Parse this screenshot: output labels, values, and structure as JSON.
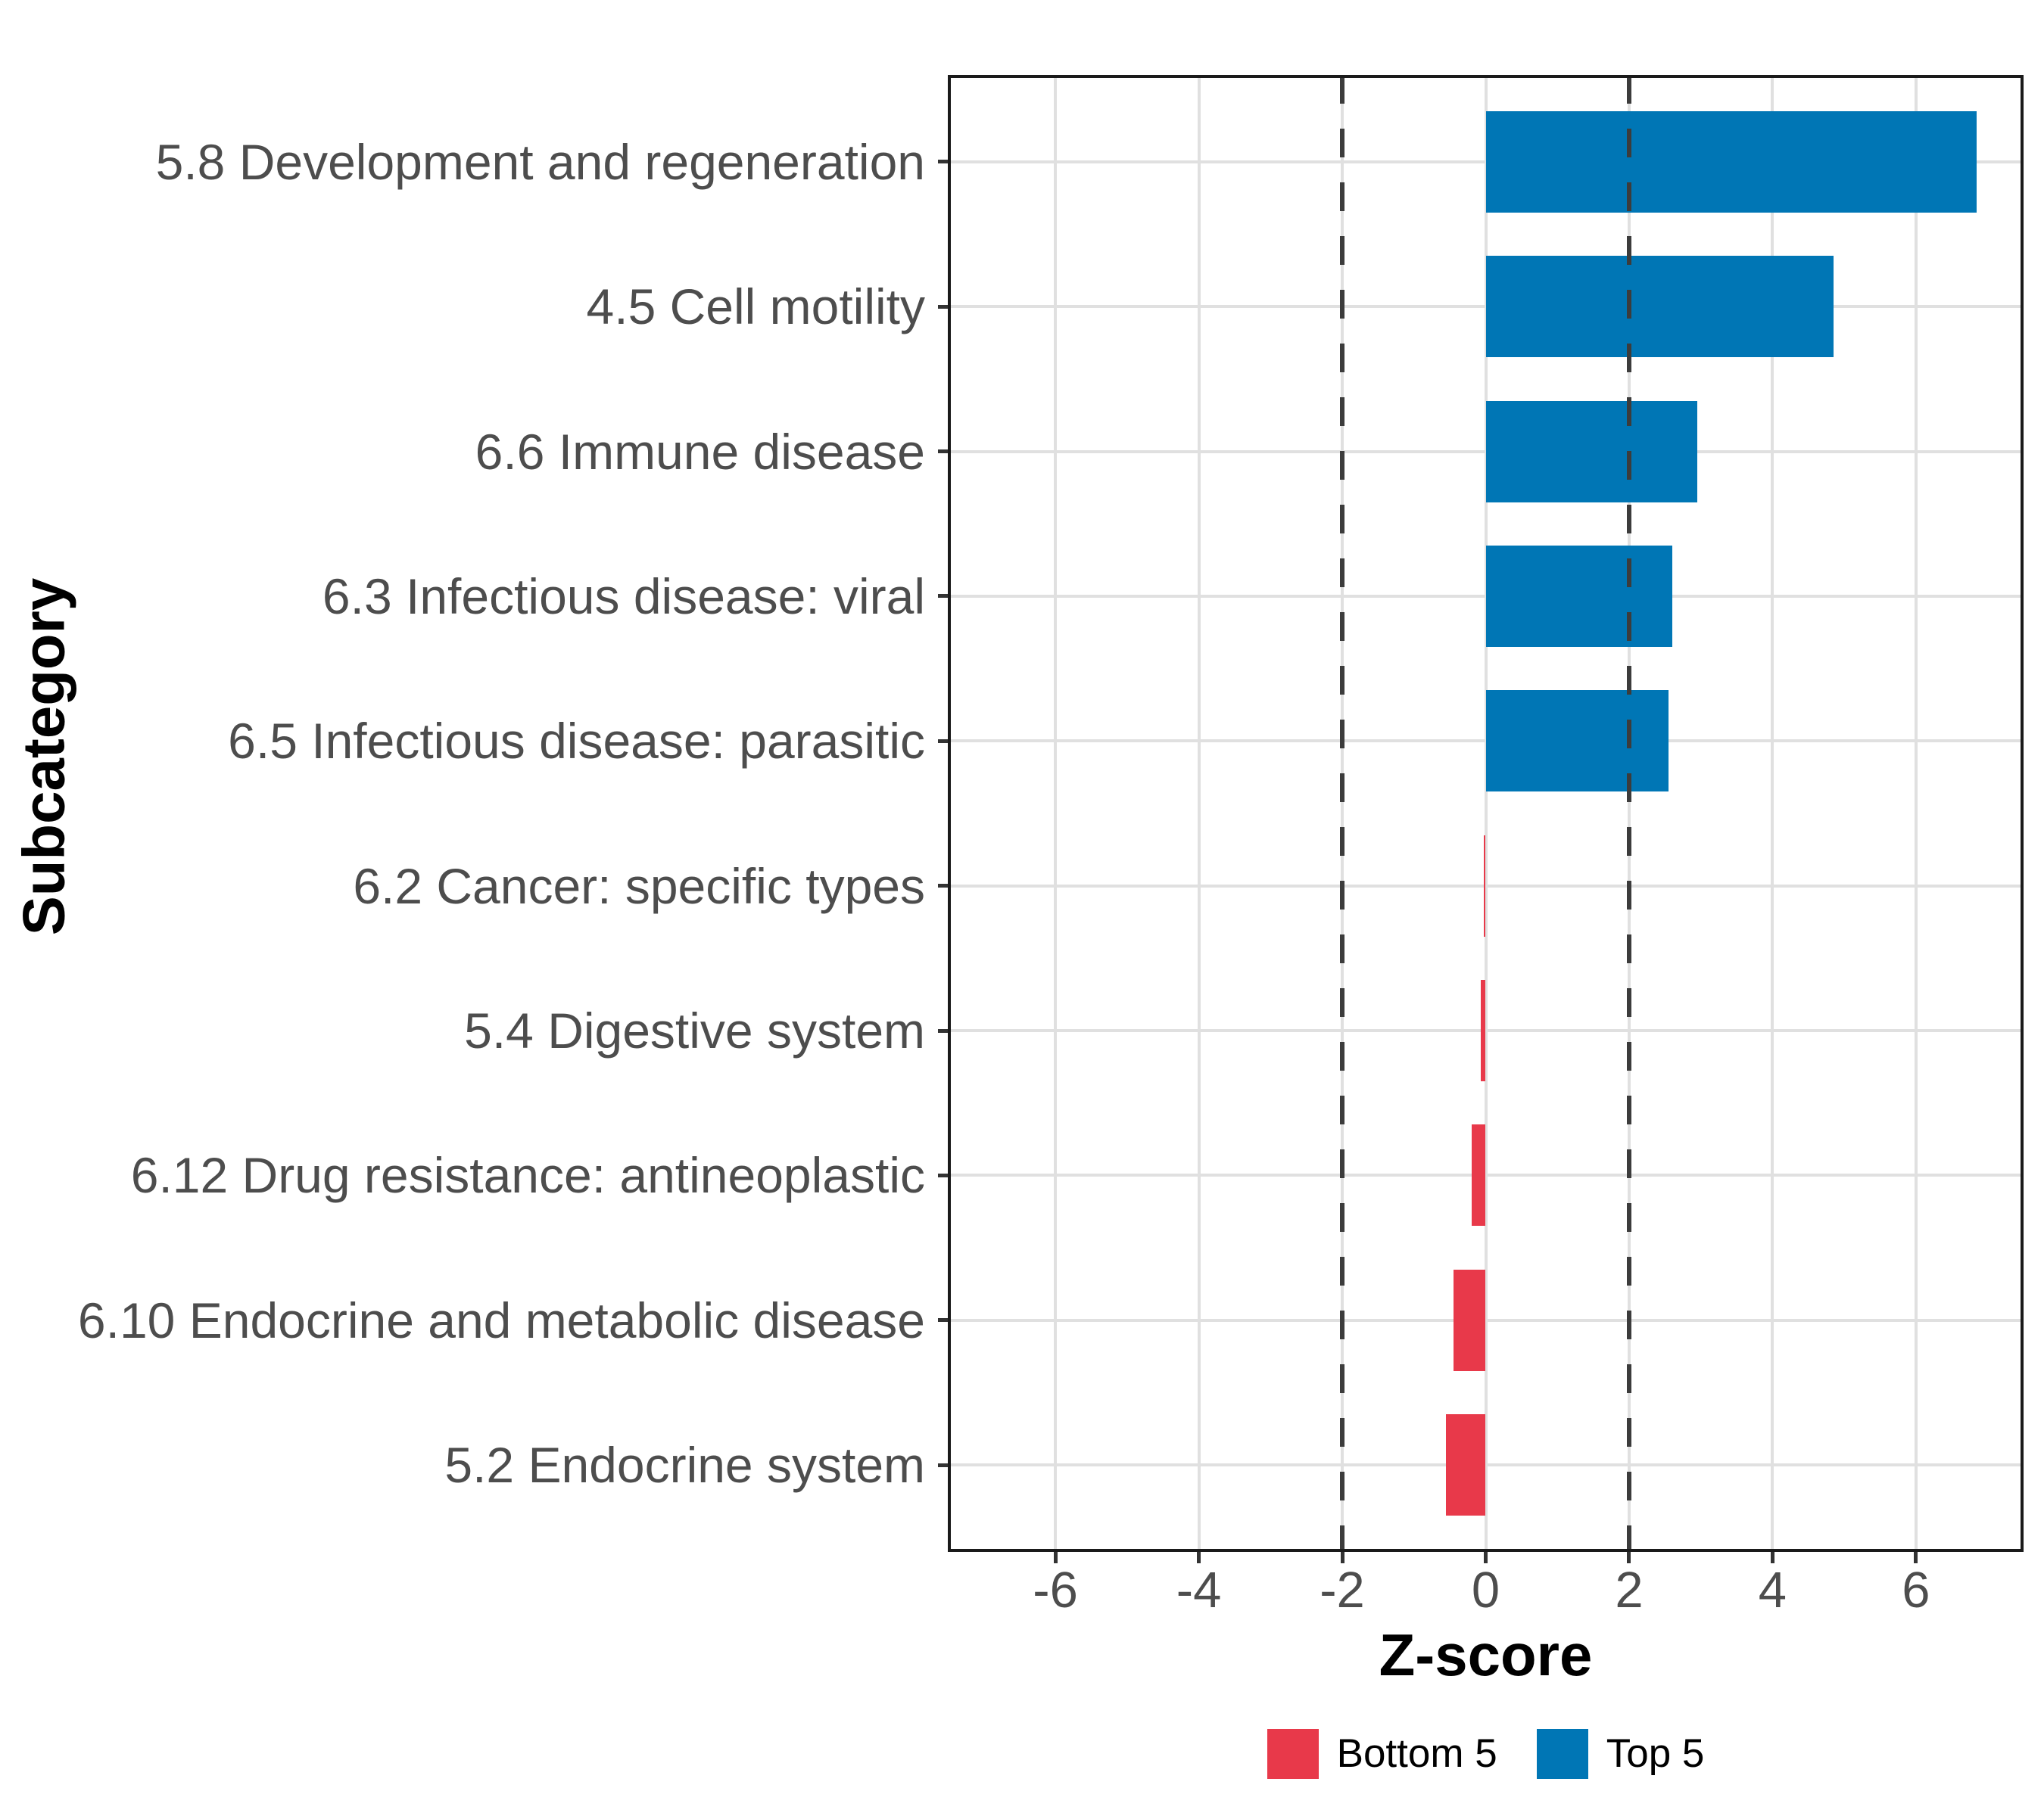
{
  "chart_data": {
    "type": "bar",
    "orientation": "horizontal",
    "title": "",
    "xlabel": "Z-score",
    "ylabel": "Subcategory",
    "xlim": [
      -7.5,
      7.5
    ],
    "x_ticks": [
      -6,
      -4,
      -2,
      0,
      2,
      4,
      6
    ],
    "x_tick_labels": [
      "-6",
      "-4",
      "-2",
      "0",
      "2",
      "4",
      "6"
    ],
    "reference_lines": [
      -2,
      2
    ],
    "grid": "major-only",
    "legend_position": "bottom",
    "categories": [
      "5.8 Development and regeneration",
      "4.5 Cell motility",
      "6.6 Immune disease",
      "6.3 Infectious disease: viral",
      "6.5 Infectious disease: parasitic",
      "6.2 Cancer: specific types",
      "5.4 Digestive system",
      "6.12 Drug resistance: antineoplastic",
      "6.10 Endocrine and metabolic disease",
      "5.2 Endocrine system"
    ],
    "values": [
      6.85,
      4.85,
      2.95,
      2.6,
      2.55,
      -0.03,
      -0.07,
      -0.2,
      -0.45,
      -0.55
    ],
    "groups": [
      "Top 5",
      "Top 5",
      "Top 5",
      "Top 5",
      "Top 5",
      "Bottom 5",
      "Bottom 5",
      "Bottom 5",
      "Bottom 5",
      "Bottom 5"
    ],
    "legend": [
      {
        "label": "Bottom 5",
        "color": "#E8394A"
      },
      {
        "label": "Top 5",
        "color": "#0076B5"
      }
    ],
    "colors": {
      "top5_blue": "#0076B5",
      "bottom5_red": "#E8394A",
      "gridline": "#E0E0E0",
      "reference_line": "#3C3C3C",
      "axis_text": "#4D4D4D",
      "axis_title": "#000000",
      "panel_border": "#1A1A1A"
    }
  }
}
